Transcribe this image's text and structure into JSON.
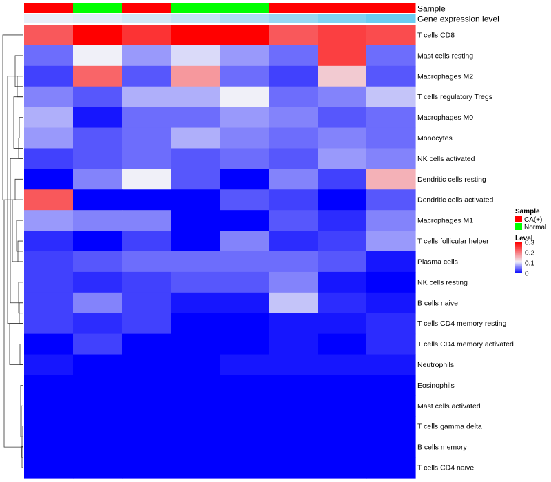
{
  "chart_data": {
    "type": "heatmap",
    "annotation_tracks": [
      {
        "name": "Sample",
        "values": [
          "CA(+)",
          "Normal",
          "CA(+)",
          "Normal",
          "Normal",
          "CA(+)",
          "CA(+)",
          "CA(+)"
        ]
      },
      {
        "name": "Gene expression level",
        "values": [
          0.05,
          0.1,
          0.2,
          0.3,
          0.45,
          0.6,
          0.75,
          0.9
        ]
      }
    ],
    "sample_colors": {
      "CA(+)": "#ff0000",
      "Normal": "#00ff00"
    },
    "expression_colors": {
      "low": "#f0f0f8",
      "high": "#5bc8f0"
    },
    "rows": [
      "T cells CD8",
      "Mast cells resting",
      "Macrophages M2",
      "T cells regulatory  Tregs",
      "Macrophages M0",
      "Monocytes",
      "NK cells activated",
      "Dendritic cells resting",
      "Dendritic cells activated",
      "Macrophages M1",
      "T cells follicular helper",
      "Plasma cells",
      "NK cells resting",
      "B cells naive",
      "T cells CD4 memory resting",
      "T cells CD4 memory activated",
      "Neutrophils",
      "Eosinophils",
      "Mast cells activated",
      "T cells gamma delta",
      "B cells memory",
      "T cells CD4 naive"
    ],
    "values": [
      [
        0.23,
        0.3,
        0.26,
        0.3,
        0.3,
        0.23,
        0.25,
        0.24
      ],
      [
        0.05,
        0.11,
        0.07,
        0.1,
        0.07,
        0.05,
        0.25,
        0.05
      ],
      [
        0.03,
        0.22,
        0.04,
        0.18,
        0.05,
        0.03,
        0.14,
        0.04
      ],
      [
        0.06,
        0.04,
        0.08,
        0.08,
        0.11,
        0.05,
        0.06,
        0.09
      ],
      [
        0.08,
        0.01,
        0.05,
        0.05,
        0.07,
        0.06,
        0.04,
        0.05
      ],
      [
        0.07,
        0.04,
        0.05,
        0.08,
        0.06,
        0.05,
        0.06,
        0.05
      ],
      [
        0.03,
        0.04,
        0.05,
        0.04,
        0.05,
        0.04,
        0.07,
        0.06
      ],
      [
        0.0,
        0.06,
        0.11,
        0.04,
        0.0,
        0.06,
        0.03,
        0.16
      ],
      [
        0.23,
        0.0,
        0.0,
        0.0,
        0.04,
        0.03,
        0.0,
        0.04
      ],
      [
        0.07,
        0.06,
        0.06,
        0.0,
        0.0,
        0.04,
        0.02,
        0.06
      ],
      [
        0.02,
        0.0,
        0.03,
        0.0,
        0.06,
        0.02,
        0.03,
        0.07
      ],
      [
        0.03,
        0.04,
        0.05,
        0.05,
        0.05,
        0.05,
        0.04,
        0.01
      ],
      [
        0.03,
        0.02,
        0.03,
        0.04,
        0.04,
        0.06,
        0.01,
        0.0
      ],
      [
        0.03,
        0.06,
        0.03,
        0.01,
        0.01,
        0.09,
        0.02,
        0.01
      ],
      [
        0.03,
        0.02,
        0.03,
        0.0,
        0.0,
        0.01,
        0.01,
        0.02
      ],
      [
        0.0,
        0.03,
        0.0,
        0.0,
        0.0,
        0.01,
        0.0,
        0.02
      ],
      [
        0.01,
        0.0,
        0.0,
        0.0,
        0.01,
        0.01,
        0.01,
        0.01
      ],
      [
        0.0,
        0.0,
        0.0,
        0.0,
        0.0,
        0.0,
        0.0,
        0.0
      ],
      [
        0.0,
        0.0,
        0.0,
        0.0,
        0.0,
        0.0,
        0.0,
        0.0
      ],
      [
        0.0,
        0.0,
        0.0,
        0.0,
        0.0,
        0.0,
        0.0,
        0.0
      ],
      [
        0.0,
        0.0,
        0.0,
        0.0,
        0.0,
        0.0,
        0.0,
        0.0
      ],
      [
        0.0,
        0.0,
        0.0,
        0.0,
        0.0,
        0.0,
        0.0,
        0.0
      ]
    ],
    "color_scale": {
      "stops": [
        {
          "value": 0,
          "color": "#0000ff"
        },
        {
          "value": 0.11,
          "color": "#f0f0f8"
        },
        {
          "value": 0.3,
          "color": "#ff0000"
        }
      ]
    },
    "legend": {
      "sample_title": "Sample",
      "sample_entries": [
        "CA(+)",
        "Normal"
      ],
      "level_title": "Level",
      "level_ticks": [
        0.3,
        0.2,
        0.1,
        0
      ]
    }
  }
}
